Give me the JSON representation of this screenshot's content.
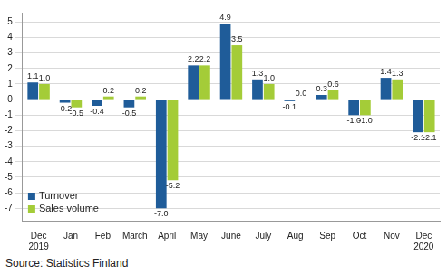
{
  "chart_data": {
    "type": "bar",
    "source": "Source: Statistics Finland",
    "categories": [
      "Dec 2019",
      "Jan",
      "Feb",
      "March",
      "April",
      "May",
      "June",
      "July",
      "Aug",
      "Sep",
      "Oct",
      "Nov",
      "Dec 2020"
    ],
    "series": [
      {
        "name": "Turnover",
        "color": "#1f5c99",
        "values": [
          1.1,
          -0.2,
          -0.4,
          -0.5,
          -7.0,
          2.2,
          4.9,
          1.3,
          -0.1,
          0.3,
          -1.0,
          1.4,
          -2.1
        ],
        "value_labels": [
          "1.1",
          "-0.2",
          "-0.4",
          "-0.5",
          "-7.0",
          "2.2",
          "4.9",
          "1.3",
          "-0.1",
          "0.3",
          "-1.0",
          "1.4",
          "-2.1"
        ]
      },
      {
        "name": "Sales volume",
        "color": "#a4cc38",
        "values": [
          1.0,
          -0.5,
          0.2,
          0.2,
          -5.2,
          2.2,
          3.5,
          1.0,
          0.0,
          0.6,
          -1.0,
          1.3,
          -2.1
        ],
        "value_labels": [
          "1.0",
          "-0.5",
          "0.2",
          "0.2",
          "-5.2",
          "2.2",
          "3.5",
          "1.0",
          "0.0",
          "0.6",
          "-1.0",
          "1.3",
          "-2.1"
        ]
      }
    ],
    "ylim": [
      -7.8,
      5.6
    ],
    "yticks": [
      -7,
      -6,
      -5,
      -4,
      -3,
      -2,
      -1,
      0,
      1,
      2,
      3,
      4,
      5
    ],
    "grid": true,
    "data_labels": true,
    "legend": "lower left"
  }
}
